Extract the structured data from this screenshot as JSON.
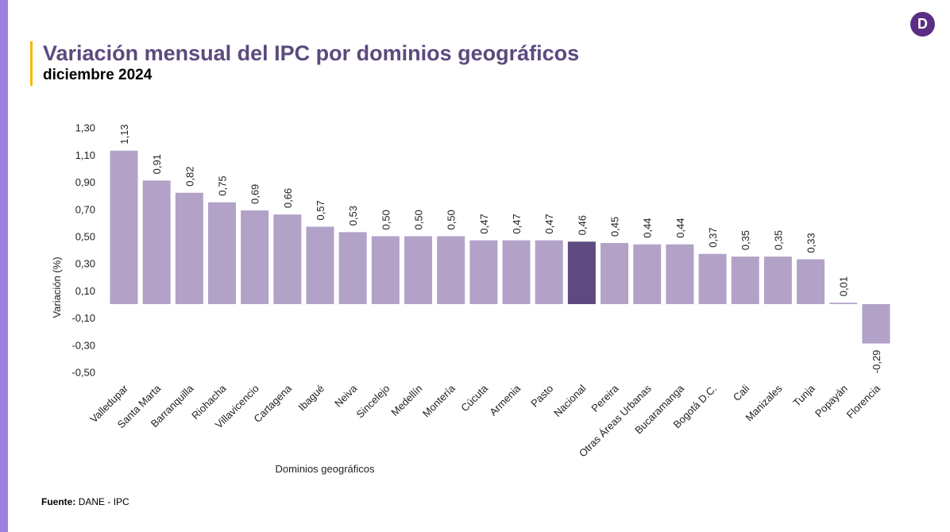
{
  "header": {
    "title": "Variación mensual del IPC por dominios geográficos",
    "subtitle": "diciembre 2024"
  },
  "logo": {
    "letter": "D",
    "icon": "dane-logo-icon"
  },
  "footer": {
    "source_label": "Fuente:",
    "source_value": "DANE - IPC"
  },
  "colors": {
    "bar": "#b2a2c8",
    "highlight": "#5e4a7e",
    "accent": "#f5b800",
    "sidebar": "#9d7fe0"
  },
  "chart_data": {
    "type": "bar",
    "title": "Variación mensual del IPC por dominios geográficos",
    "xlabel": "Dominios geográficos",
    "ylabel": "Variación (%)",
    "ylim": [
      -0.5,
      1.3
    ],
    "yticks": [
      "-0,50",
      "-0,30",
      "-0,10",
      "0,10",
      "0,30",
      "0,50",
      "0,70",
      "0,90",
      "1,10",
      "1,30"
    ],
    "ytick_values": [
      -0.5,
      -0.3,
      -0.1,
      0.1,
      0.3,
      0.5,
      0.7,
      0.9,
      1.1,
      1.3
    ],
    "highlight": "Nacional",
    "categories": [
      "Valledupar",
      "Santa Marta",
      "Barranquilla",
      "Riohacha",
      "Villavicencio",
      "Cartagena",
      "Ibagué",
      "Neiva",
      "Sincelejo",
      "Medellín",
      "Montería",
      "Cúcuta",
      "Armenia",
      "Pasto",
      "Nacional",
      "Pereira",
      "Otras Áreas Urbanas",
      "Bucaramanga",
      "Bogotá D.C.",
      "Cali",
      "Manizales",
      "Tunja",
      "Popayán",
      "Florencia"
    ],
    "values": [
      1.13,
      0.91,
      0.82,
      0.75,
      0.69,
      0.66,
      0.57,
      0.53,
      0.5,
      0.5,
      0.5,
      0.47,
      0.47,
      0.47,
      0.46,
      0.45,
      0.44,
      0.44,
      0.37,
      0.35,
      0.35,
      0.33,
      0.01,
      -0.29
    ],
    "labels": [
      "1,13",
      "0,91",
      "0,82",
      "0,75",
      "0,69",
      "0,66",
      "0,57",
      "0,53",
      "0,50",
      "0,50",
      "0,50",
      "0,47",
      "0,47",
      "0,47",
      "0,46",
      "0,45",
      "0,44",
      "0,44",
      "0,37",
      "0,35",
      "0,35",
      "0,33",
      "0,01",
      "-0,29"
    ]
  }
}
